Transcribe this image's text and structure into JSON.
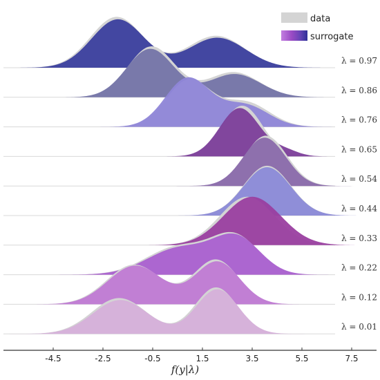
{
  "chart_data": {
    "type": "area",
    "title": "",
    "xlabel": "f(y|λ)",
    "ylabel": "",
    "xlim": [
      -6.5,
      8.5
    ],
    "xticks": [
      -4.5,
      -2.5,
      -0.5,
      1.5,
      3.5,
      5.5,
      7.5
    ],
    "xtick_labels": [
      "-4.5",
      "-2.5",
      "-0.5",
      "1.5",
      "3.5",
      "5.5",
      "7.5"
    ],
    "grid": false,
    "legend": {
      "placement": "top-right",
      "entries": [
        {
          "label": "data",
          "color": "#d4d4d4"
        },
        {
          "label": "surrogate",
          "colors": [
            "#b05fd8",
            "#8a3fb0",
            "#3a3fa0"
          ]
        }
      ]
    },
    "data_color": "#d4d4d4",
    "series": [
      {
        "label": "λ = 0.97",
        "color": "#3b3f9e",
        "surrogate": [
          {
            "mu": -1.9,
            "sigma": 1.05,
            "w": 1.0
          },
          {
            "mu": 2.1,
            "sigma": 1.15,
            "w": 0.62
          }
        ],
        "data": [
          {
            "mu": -1.95,
            "sigma": 1.05,
            "w": 1.05
          },
          {
            "mu": 2.05,
            "sigma": 1.15,
            "w": 0.66
          }
        ]
      },
      {
        "label": "λ = 0.86",
        "color": "#7474a8",
        "surrogate": [
          {
            "mu": -0.6,
            "sigma": 0.95,
            "w": 1.0
          },
          {
            "mu": 2.8,
            "sigma": 1.05,
            "w": 0.48
          }
        ],
        "data": [
          {
            "mu": -0.55,
            "sigma": 0.95,
            "w": 1.05
          },
          {
            "mu": 2.75,
            "sigma": 1.05,
            "w": 0.52
          }
        ]
      },
      {
        "label": "λ = 0.76",
        "color": "#8f86d8",
        "surrogate": [
          {
            "mu": 0.9,
            "sigma": 0.9,
            "w": 1.0
          },
          {
            "mu": 3.2,
            "sigma": 0.95,
            "w": 0.45
          }
        ],
        "data": [
          {
            "mu": 0.95,
            "sigma": 0.9,
            "w": 0.96
          },
          {
            "mu": 3.25,
            "sigma": 0.95,
            "w": 0.5
          }
        ]
      },
      {
        "label": "λ = 0.65",
        "color": "#7c3e9a",
        "surrogate": [
          {
            "mu": 3.0,
            "sigma": 0.8,
            "w": 1.0
          },
          {
            "mu": 4.8,
            "sigma": 0.55,
            "w": 0.12
          }
        ],
        "data": [
          {
            "mu": 3.1,
            "sigma": 0.82,
            "w": 1.05
          }
        ]
      },
      {
        "label": "λ = 0.54",
        "color": "#8a6aab",
        "surrogate": [
          {
            "mu": 4.0,
            "sigma": 0.85,
            "w": 1.0
          }
        ],
        "data": [
          {
            "mu": 4.05,
            "sigma": 0.85,
            "w": 1.04
          }
        ]
      },
      {
        "label": "λ = 0.44",
        "color": "#8b8ad8",
        "surrogate": [
          {
            "mu": 4.1,
            "sigma": 0.95,
            "w": 1.0
          }
        ],
        "data": [
          {
            "mu": 4.1,
            "sigma": 0.95,
            "w": 1.03
          }
        ]
      },
      {
        "label": "λ = 0.33",
        "color": "#9a3fa0",
        "surrogate": [
          {
            "mu": 3.5,
            "sigma": 1.15,
            "w": 1.0
          }
        ],
        "data": [
          {
            "mu": 3.3,
            "sigma": 1.1,
            "w": 1.0
          }
        ]
      },
      {
        "label": "λ = 0.22",
        "color": "#aa60d0",
        "surrogate": [
          {
            "mu": 0.6,
            "sigma": 1.3,
            "w": 0.55
          },
          {
            "mu": 2.9,
            "sigma": 0.95,
            "w": 0.72
          }
        ],
        "data": [
          {
            "mu": 0.55,
            "sigma": 1.3,
            "w": 0.58
          },
          {
            "mu": 2.85,
            "sigma": 0.95,
            "w": 0.74
          }
        ]
      },
      {
        "label": "λ = 0.12",
        "color": "#c07ad4",
        "surrogate": [
          {
            "mu": -1.2,
            "sigma": 1.1,
            "w": 0.8
          },
          {
            "mu": 2.1,
            "sigma": 0.9,
            "w": 0.88
          }
        ],
        "data": [
          {
            "mu": -1.25,
            "sigma": 1.1,
            "w": 0.82
          },
          {
            "mu": 2.05,
            "sigma": 0.9,
            "w": 0.92
          }
        ]
      },
      {
        "label": "λ = 0.01",
        "color": "#d6b0da",
        "surrogate": [
          {
            "mu": -1.8,
            "sigma": 1.1,
            "w": 0.7
          },
          {
            "mu": 2.1,
            "sigma": 0.85,
            "w": 0.92
          }
        ],
        "data": [
          {
            "mu": -1.85,
            "sigma": 1.1,
            "w": 0.74
          },
          {
            "mu": 2.05,
            "sigma": 0.85,
            "w": 0.96
          }
        ]
      }
    ]
  }
}
